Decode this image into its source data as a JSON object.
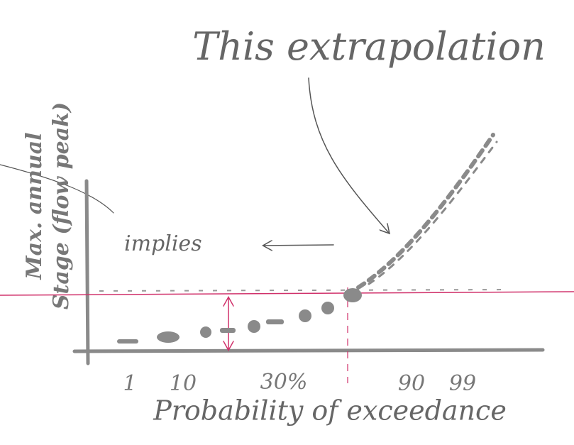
{
  "title": "This extrapolation",
  "annotation": "implies",
  "y_label": [
    "Max. annual",
    "Stage (flow peak)"
  ],
  "x_label": "Probability of exceedance",
  "x_tick_labels": [
    "1",
    "10",
    "30%",
    "90",
    "99"
  ]
}
